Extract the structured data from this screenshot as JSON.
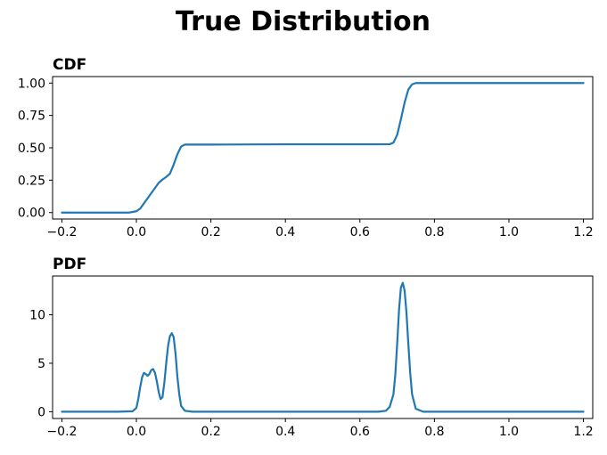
{
  "figure": {
    "title": "True Distribution",
    "line_color": "#1f77b4"
  },
  "chart_data": [
    {
      "type": "line",
      "title": "CDF",
      "xlabel": "",
      "ylabel": "",
      "xlim": [
        -0.225,
        1.225
      ],
      "ylim": [
        -0.05,
        1.05
      ],
      "xticks": [
        -0.2,
        0.0,
        0.2,
        0.4,
        0.6,
        0.8,
        1.0,
        1.2
      ],
      "xtick_labels": [
        "−0.2",
        "0.0",
        "0.2",
        "0.4",
        "0.6",
        "0.8",
        "1.0",
        "1.2"
      ],
      "yticks": [
        0.0,
        0.25,
        0.5,
        0.75,
        1.0
      ],
      "ytick_labels": [
        "0.00",
        "0.25",
        "0.50",
        "0.75",
        "1.00"
      ],
      "grid": false,
      "series": [
        {
          "x": [
            -0.2,
            -0.1,
            -0.02,
            0.0,
            0.01,
            0.02,
            0.03,
            0.04,
            0.05,
            0.06,
            0.07,
            0.08,
            0.09,
            0.1,
            0.11,
            0.12,
            0.13,
            0.15,
            0.2,
            0.4,
            0.6,
            0.66,
            0.68,
            0.69,
            0.7,
            0.71,
            0.72,
            0.73,
            0.74,
            0.75,
            0.77,
            0.8,
            1.0,
            1.2
          ],
          "y": [
            0.0,
            0.0,
            0.0,
            0.01,
            0.03,
            0.07,
            0.11,
            0.15,
            0.19,
            0.23,
            0.255,
            0.275,
            0.3,
            0.37,
            0.45,
            0.51,
            0.525,
            0.525,
            0.525,
            0.527,
            0.527,
            0.527,
            0.528,
            0.54,
            0.6,
            0.72,
            0.85,
            0.95,
            0.99,
            1.0,
            1.0,
            1.0,
            1.0,
            1.0
          ]
        }
      ]
    },
    {
      "type": "line",
      "title": "PDF",
      "xlabel": "",
      "ylabel": "",
      "xlim": [
        -0.225,
        1.225
      ],
      "ylim": [
        -0.7,
        14.0
      ],
      "xticks": [
        -0.2,
        0.0,
        0.2,
        0.4,
        0.6,
        0.8,
        1.0,
        1.2
      ],
      "xtick_labels": [
        "−0.2",
        "0.0",
        "0.2",
        "0.4",
        "0.6",
        "0.8",
        "1.0",
        "1.2"
      ],
      "yticks": [
        0,
        5,
        10
      ],
      "ytick_labels": [
        "0",
        "5",
        "10"
      ],
      "grid": false,
      "series": [
        {
          "x": [
            -0.2,
            -0.05,
            -0.01,
            0.0,
            0.005,
            0.01,
            0.015,
            0.02,
            0.025,
            0.03,
            0.035,
            0.04,
            0.045,
            0.05,
            0.055,
            0.06,
            0.065,
            0.07,
            0.075,
            0.08,
            0.085,
            0.09,
            0.095,
            0.1,
            0.105,
            0.11,
            0.115,
            0.12,
            0.13,
            0.15,
            0.4,
            0.65,
            0.67,
            0.68,
            0.69,
            0.695,
            0.7,
            0.705,
            0.71,
            0.715,
            0.72,
            0.725,
            0.73,
            0.735,
            0.74,
            0.75,
            0.77,
            1.0,
            1.2
          ],
          "y": [
            0.0,
            0.0,
            0.05,
            0.4,
            1.3,
            2.5,
            3.5,
            4.0,
            3.9,
            3.7,
            3.9,
            4.3,
            4.4,
            4.0,
            3.1,
            2.0,
            1.3,
            1.5,
            3.0,
            5.0,
            6.8,
            7.8,
            8.1,
            7.7,
            6.0,
            3.6,
            1.8,
            0.6,
            0.1,
            0.0,
            0.0,
            0.0,
            0.1,
            0.5,
            1.8,
            3.8,
            7.0,
            10.5,
            12.8,
            13.3,
            12.5,
            10.2,
            7.0,
            4.0,
            1.8,
            0.3,
            0.0,
            0.0,
            0.0
          ]
        }
      ]
    }
  ]
}
